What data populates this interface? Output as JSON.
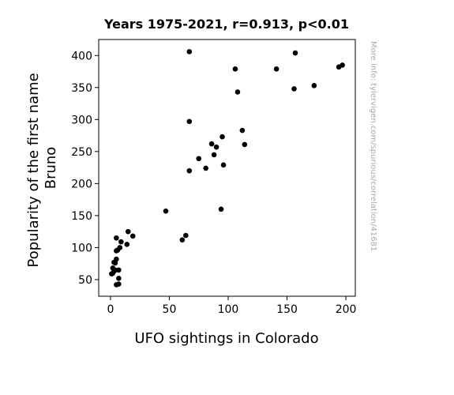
{
  "chart_data": {
    "type": "scatter",
    "title": "Years 1975-2021, r=0.913, p<0.01",
    "xlabel": "UFO sightings in Colorado",
    "ylabel": "Popularity of the first name\nBruno",
    "side_note": "More info: tylervigen.com/spurious/correlation/41681",
    "xlim": [
      -10,
      208
    ],
    "ylim": [
      24,
      425
    ],
    "xticks": [
      0,
      50,
      100,
      150,
      200
    ],
    "yticks": [
      50,
      100,
      150,
      200,
      250,
      300,
      350,
      400
    ],
    "grid": false,
    "marker_color": "#000000",
    "points": [
      {
        "x": 1,
        "y": 59
      },
      {
        "x": 2,
        "y": 60
      },
      {
        "x": 2,
        "y": 68
      },
      {
        "x": 3,
        "y": 77
      },
      {
        "x": 3,
        "y": 63
      },
      {
        "x": 4,
        "y": 76
      },
      {
        "x": 4,
        "y": 65
      },
      {
        "x": 5,
        "y": 82
      },
      {
        "x": 5,
        "y": 115
      },
      {
        "x": 5,
        "y": 95
      },
      {
        "x": 5,
        "y": 42
      },
      {
        "x": 6,
        "y": 96
      },
      {
        "x": 7,
        "y": 43
      },
      {
        "x": 7,
        "y": 65
      },
      {
        "x": 7,
        "y": 52
      },
      {
        "x": 8,
        "y": 100
      },
      {
        "x": 9,
        "y": 109
      },
      {
        "x": 14,
        "y": 105
      },
      {
        "x": 15,
        "y": 125
      },
      {
        "x": 19,
        "y": 118
      },
      {
        "x": 47,
        "y": 157
      },
      {
        "x": 61,
        "y": 112
      },
      {
        "x": 64,
        "y": 119
      },
      {
        "x": 67,
        "y": 406
      },
      {
        "x": 67,
        "y": 297
      },
      {
        "x": 67,
        "y": 220
      },
      {
        "x": 75,
        "y": 239
      },
      {
        "x": 81,
        "y": 224
      },
      {
        "x": 86,
        "y": 262
      },
      {
        "x": 88,
        "y": 245
      },
      {
        "x": 90,
        "y": 257
      },
      {
        "x": 94,
        "y": 160
      },
      {
        "x": 95,
        "y": 273
      },
      {
        "x": 96,
        "y": 229
      },
      {
        "x": 106,
        "y": 379
      },
      {
        "x": 108,
        "y": 343
      },
      {
        "x": 112,
        "y": 283
      },
      {
        "x": 114,
        "y": 261
      },
      {
        "x": 141,
        "y": 379
      },
      {
        "x": 156,
        "y": 348
      },
      {
        "x": 157,
        "y": 404
      },
      {
        "x": 173,
        "y": 353
      },
      {
        "x": 194,
        "y": 382
      },
      {
        "x": 197,
        "y": 385
      }
    ]
  }
}
